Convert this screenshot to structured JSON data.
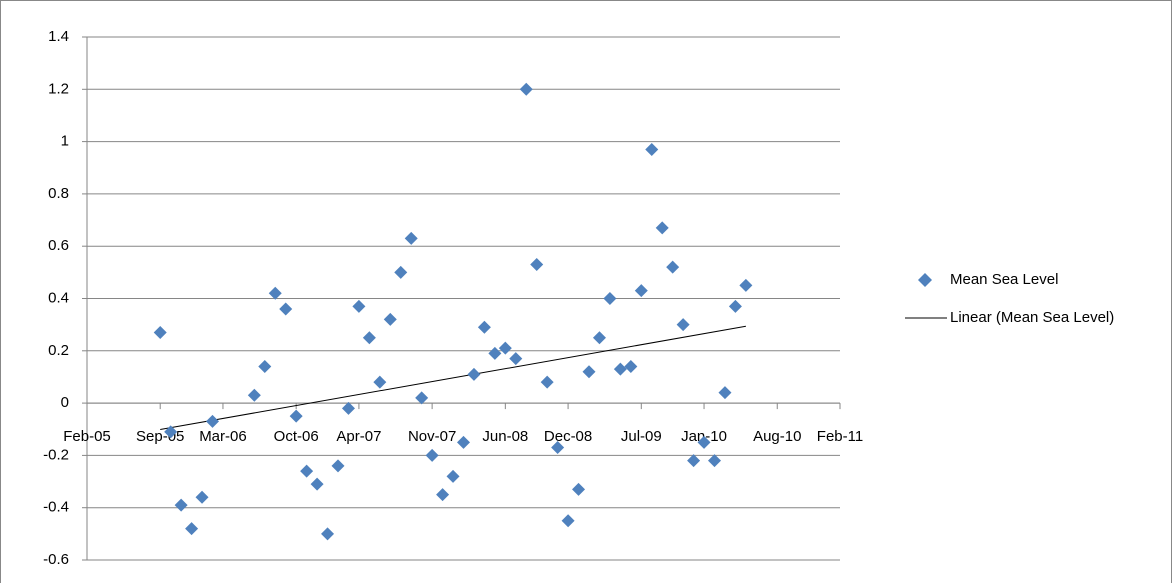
{
  "chart_data": {
    "type": "scatter",
    "x": [
      "Sep-05",
      "Oct-05",
      "Nov-05",
      "Dec-05",
      "Jan-06",
      "Feb-06",
      "Jun-06",
      "Jul-06",
      "Aug-06",
      "Sep-06",
      "Oct-06",
      "Nov-06",
      "Dec-06",
      "Jan-07",
      "Feb-07",
      "Mar-07",
      "Apr-07",
      "May-07",
      "Jun-07",
      "Jul-07",
      "Aug-07",
      "Sep-07",
      "Oct-07",
      "Nov-07",
      "Dec-07",
      "Jan-08",
      "Feb-08",
      "Mar-08",
      "Apr-08",
      "May-08",
      "Jun-08",
      "Jul-08",
      "Aug-08",
      "Sep-08",
      "Oct-08",
      "Nov-08",
      "Dec-08",
      "Jan-09",
      "Feb-09",
      "Mar-09",
      "Apr-09",
      "May-09",
      "Jun-09",
      "Jul-09",
      "Aug-09",
      "Sep-09",
      "Oct-09",
      "Nov-09",
      "Dec-09",
      "Jan-10",
      "Feb-10",
      "Mar-10",
      "Apr-10",
      "May-10"
    ],
    "series": [
      {
        "name": "Mean Sea Level",
        "color": "#4f81bd",
        "values": [
          0.27,
          -0.11,
          -0.39,
          -0.48,
          -0.36,
          -0.07,
          0.03,
          0.14,
          0.42,
          0.36,
          -0.05,
          -0.26,
          -0.31,
          -0.5,
          -0.24,
          -0.02,
          0.37,
          0.25,
          0.08,
          0.32,
          0.5,
          0.63,
          0.02,
          -0.2,
          -0.35,
          -0.28,
          -0.15,
          0.11,
          0.29,
          0.19,
          0.21,
          0.17,
          1.2,
          0.53,
          0.08,
          -0.17,
          -0.45,
          -0.33,
          0.12,
          0.25,
          0.4,
          0.13,
          0.14,
          0.43,
          0.97,
          0.67,
          0.52,
          0.3,
          -0.22,
          -0.15,
          -0.22,
          0.04,
          0.37,
          0.45
        ]
      }
    ],
    "trendline": {
      "name": "Linear (Mean Sea Level)",
      "color": "#000000"
    },
    "xlim": [
      "Feb-05",
      "Feb-11"
    ],
    "xticks": [
      "Feb-05",
      "Sep-05",
      "Mar-06",
      "Oct-06",
      "Apr-07",
      "Nov-07",
      "Jun-08",
      "Dec-08",
      "Jul-09",
      "Jan-10",
      "Aug-10",
      "Feb-11"
    ],
    "ylim": [
      -0.6,
      1.4
    ],
    "yticks": [
      -0.6,
      -0.4,
      -0.2,
      0,
      0.2,
      0.4,
      0.6,
      0.8,
      1,
      1.2,
      1.4
    ],
    "grid": true,
    "legend": "right"
  }
}
